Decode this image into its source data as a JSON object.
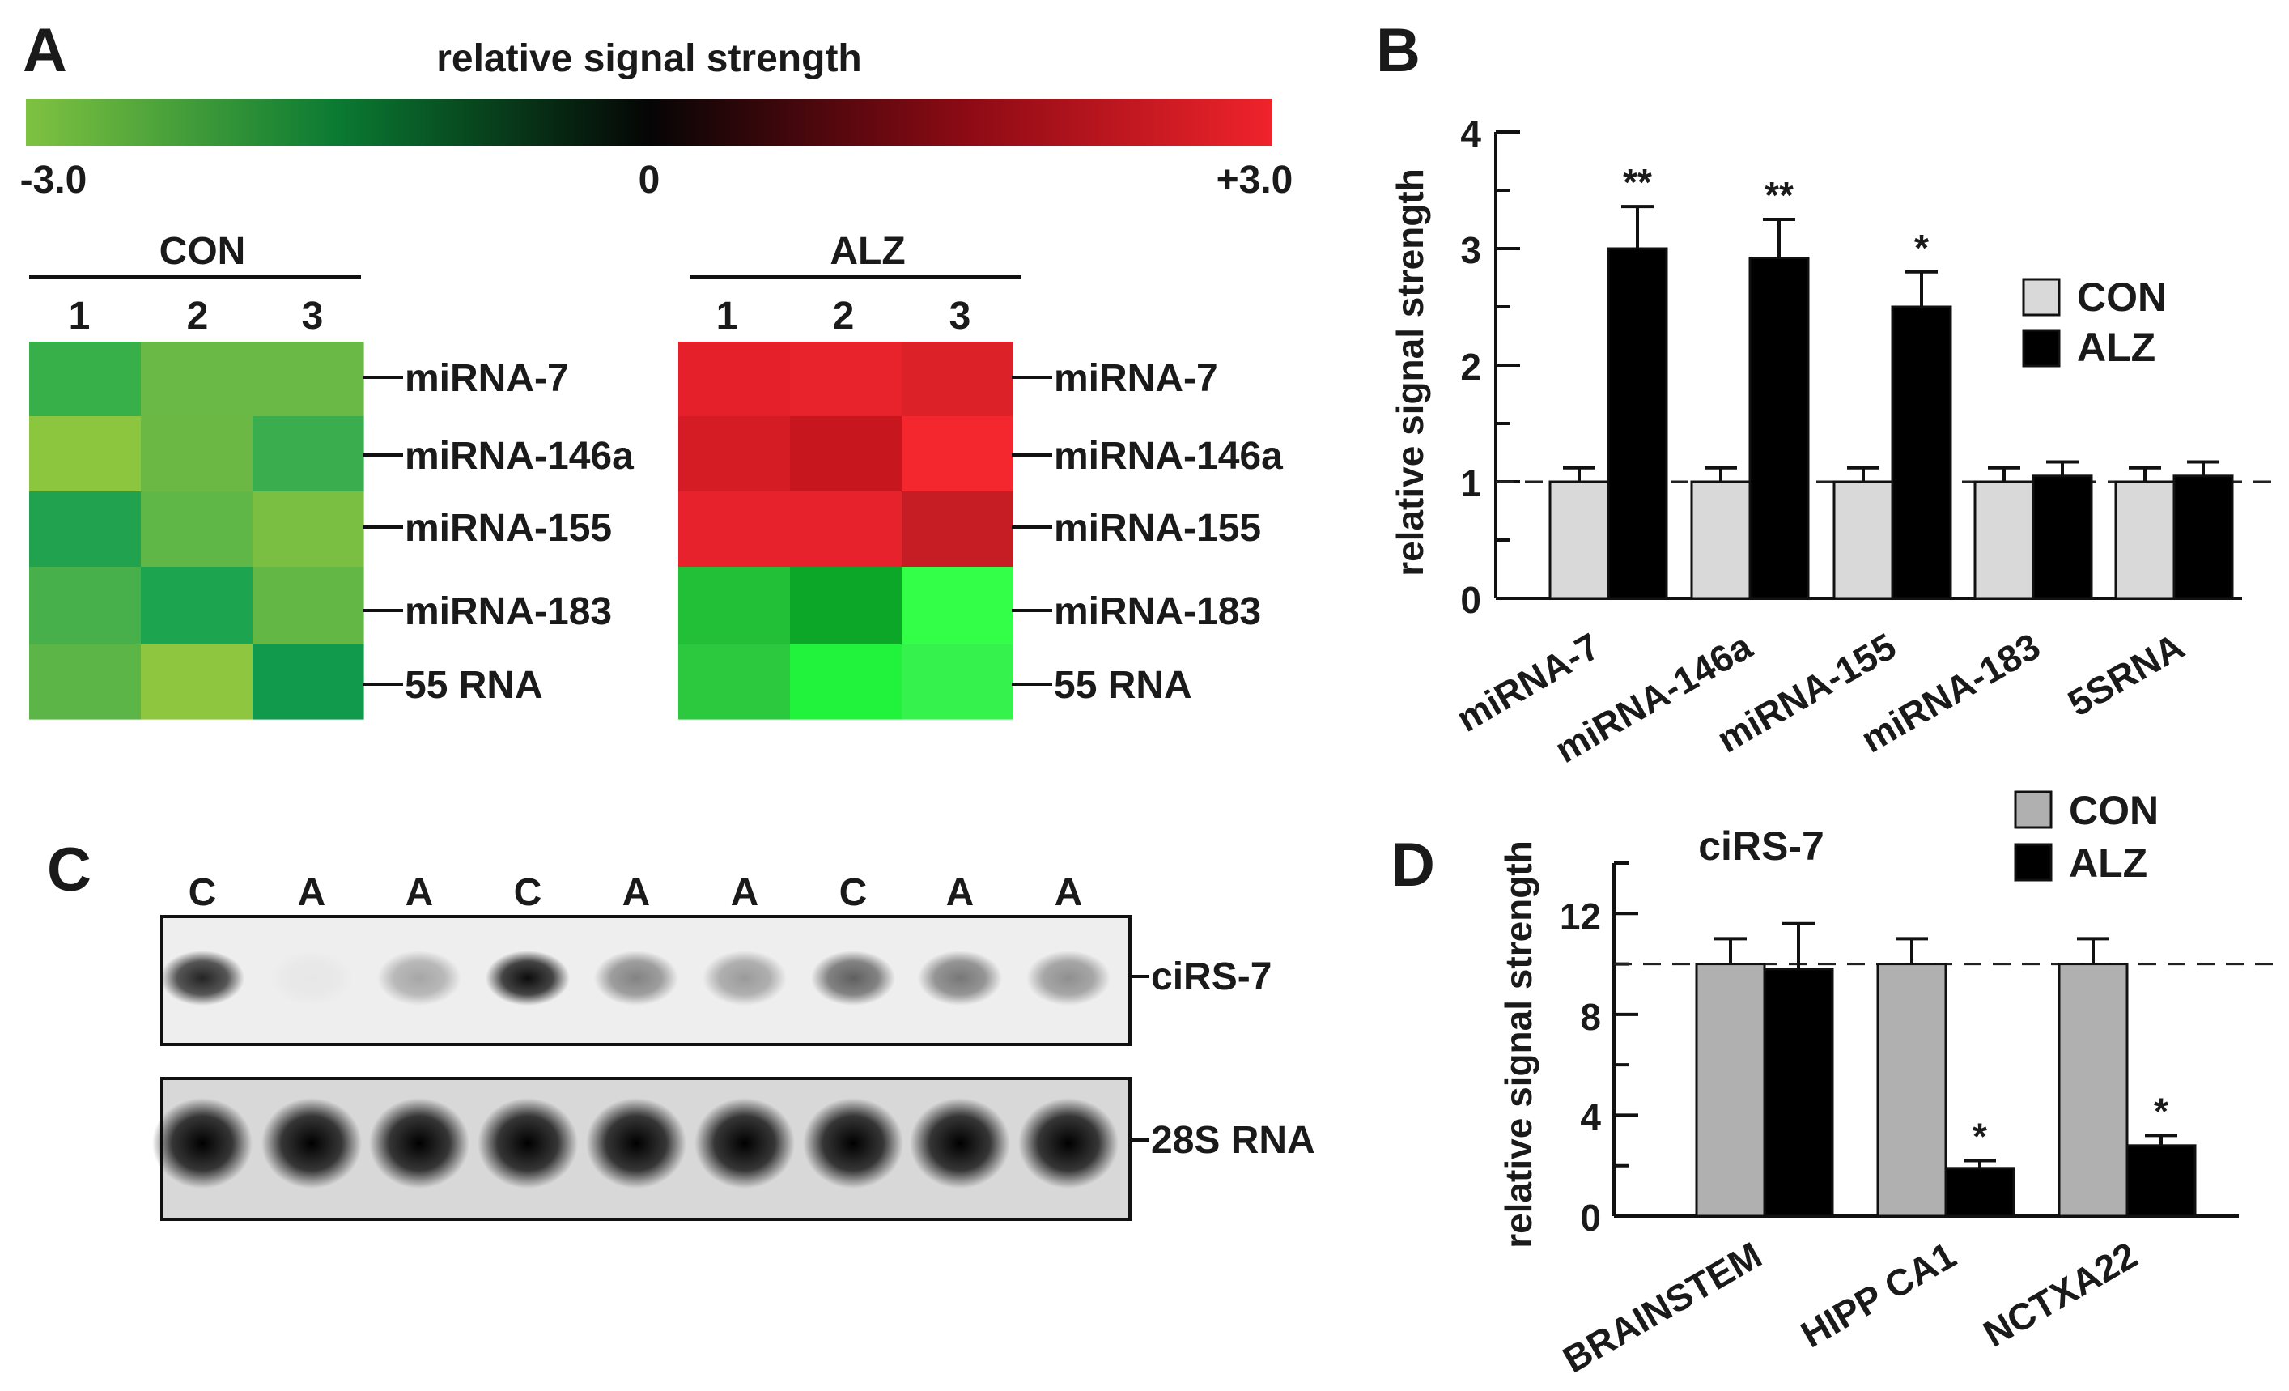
{
  "panels": {
    "a": "A",
    "b": "B",
    "c": "C",
    "d": "D"
  },
  "colorbar": {
    "title": "relative signal strength",
    "min_label": "-3.0",
    "mid_label": "0",
    "max_label": "+3.0",
    "colors": {
      "low": "#7fc241",
      "mid_low": "#0a7a32",
      "mid": "#050505",
      "mid_high": "#8a0a14",
      "high": "#f0232b"
    }
  },
  "chart_data": [
    {
      "type": "heatmap",
      "panel": "A",
      "groups": [
        {
          "title": "CON",
          "columns": [
            "1",
            "2",
            "3"
          ],
          "rows": [
            "miRNA-7",
            "miRNA-146a",
            "miRNA-155",
            "miRNA-183",
            "55 RNA"
          ],
          "colors": [
            [
              "#38b04a",
              "#6ab845",
              "#6ab845"
            ],
            [
              "#8cc63f",
              "#6cb845",
              "#3aae4e"
            ],
            [
              "#21a24e",
              "#5eb746",
              "#7abe42"
            ],
            [
              "#48b04b",
              "#1da44e",
              "#63b745"
            ],
            [
              "#5cb647",
              "#8fc63f",
              "#129a4c"
            ]
          ]
        },
        {
          "title": "ALZ",
          "columns": [
            "1",
            "2",
            "3"
          ],
          "rows": [
            "miRNA-7",
            "miRNA-146a",
            "miRNA-155",
            "miRNA-183",
            "55 RNA"
          ],
          "colors": [
            [
              "#e5202b",
              "#e9232c",
              "#dc2129"
            ],
            [
              "#d51c24",
              "#c8161e",
              "#f4262e"
            ],
            [
              "#e7222c",
              "#e7222c",
              "#c61d24"
            ],
            [
              "#22c037",
              "#0ca628",
              "#33ff48"
            ],
            [
              "#2cc93e",
              "#21f33d",
              "#36f24d"
            ]
          ]
        }
      ]
    },
    {
      "type": "bar",
      "panel": "B",
      "categories": [
        "miRNA-7",
        "miRNA-146a",
        "miRNA-155",
        "miRNA-183",
        "5SRNA"
      ],
      "series": [
        {
          "name": "CON",
          "values": [
            1.0,
            1.0,
            1.0,
            1.0,
            1.0
          ],
          "errors": [
            0.12,
            0.12,
            0.12,
            0.12,
            0.12
          ],
          "color": "#d9d9d9"
        },
        {
          "name": "ALZ",
          "values": [
            3.0,
            2.92,
            2.5,
            1.05,
            1.05
          ],
          "errors": [
            0.36,
            0.33,
            0.3,
            0.12,
            0.12
          ],
          "color": "#000000"
        }
      ],
      "significance": [
        "**",
        "**",
        "*",
        "",
        ""
      ],
      "ylabel": "relative signal strength",
      "xlabel": "",
      "ylim": [
        0,
        4
      ],
      "yticks": [
        "0",
        "1",
        "2",
        "3",
        "4"
      ],
      "reference_line": 1,
      "legend_position": "right"
    },
    {
      "type": "blot",
      "panel": "C",
      "lanes": [
        "C",
        "A",
        "A",
        "C",
        "A",
        "A",
        "C",
        "A",
        "A"
      ],
      "rows": [
        {
          "label": "ciRS-7",
          "intensity": [
            0.85,
            0.03,
            0.3,
            0.95,
            0.45,
            0.35,
            0.6,
            0.5,
            0.4
          ]
        },
        {
          "label": "28S RNA",
          "intensity": [
            1,
            1,
            1,
            1,
            1,
            1,
            1,
            1,
            1
          ]
        }
      ]
    },
    {
      "type": "bar",
      "panel": "D",
      "title": "ciRS-7",
      "categories": [
        "BRAINSTEM",
        "HIPP CA1",
        "NCTXA22"
      ],
      "series": [
        {
          "name": "CON",
          "values": [
            10.0,
            10.0,
            10.0
          ],
          "errors": [
            1.0,
            1.0,
            1.0
          ],
          "color": "#b0b0b0"
        },
        {
          "name": "ALZ",
          "values": [
            9.8,
            1.9,
            2.8
          ],
          "errors": [
            1.8,
            0.3,
            0.4
          ],
          "color": "#000000"
        }
      ],
      "significance": [
        "",
        "*",
        "*"
      ],
      "ylabel": "relative signal strength",
      "xlabel": "",
      "ylim": [
        0,
        14
      ],
      "yticks": [
        "0",
        "4",
        "8",
        "12"
      ],
      "reference_line": 10,
      "legend_position": "top-right"
    }
  ]
}
